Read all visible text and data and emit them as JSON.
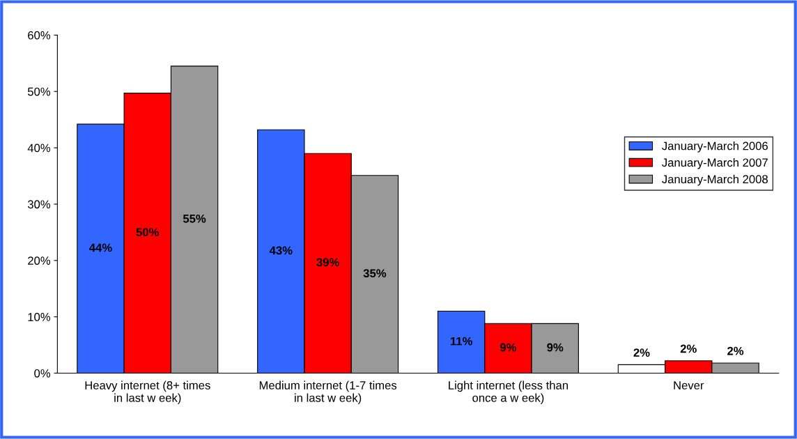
{
  "chart_data": {
    "type": "bar",
    "categories": [
      "Heavy internet (8+ times\nin last w eek)",
      "Medium internet (1-7 times\nin last w eek)",
      "Light internet (less than\nonce a w eek)",
      "Never"
    ],
    "series": [
      {
        "name": "January-March 2006",
        "color": "#3366ff",
        "colors": [
          "#3366ff",
          "#3366ff",
          "#3366ff",
          "#ffffff"
        ],
        "values": [
          44.2,
          43.2,
          11.0,
          1.5
        ],
        "value_labels": [
          "44%",
          "43%",
          "11%",
          "2%"
        ]
      },
      {
        "name": "January-March 2007",
        "color": "#ff0000",
        "values": [
          49.7,
          39.0,
          8.8,
          2.2
        ],
        "value_labels": [
          "50%",
          "39%",
          "9%",
          "2%"
        ]
      },
      {
        "name": "January-March 2008",
        "color": "#999999",
        "values": [
          54.5,
          35.1,
          8.8,
          1.8
        ],
        "value_labels": [
          "55%",
          "35%",
          "9%",
          "2%"
        ]
      }
    ],
    "ylim": [
      0,
      60
    ],
    "yticks": [
      {
        "value": 0,
        "label": "0%"
      },
      {
        "value": 10,
        "label": "10%"
      },
      {
        "value": 20,
        "label": "20%"
      },
      {
        "value": 30,
        "label": "30%"
      },
      {
        "value": 40,
        "label": "40%"
      },
      {
        "value": 50,
        "label": "50%"
      },
      {
        "value": 60,
        "label": "60%"
      }
    ],
    "grid": false,
    "legend": "right"
  }
}
